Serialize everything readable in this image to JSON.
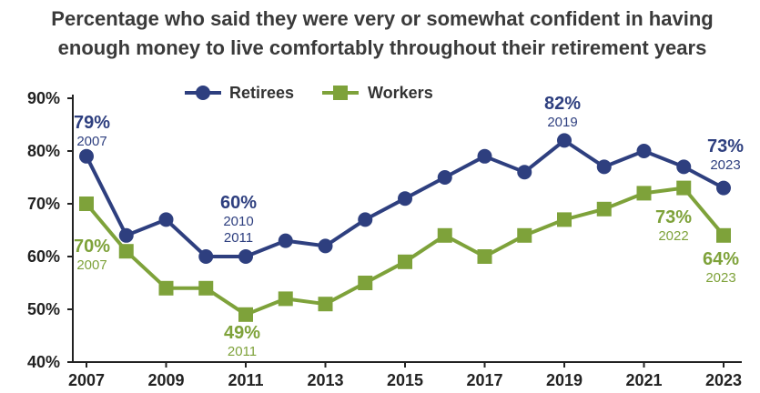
{
  "chart_data": {
    "type": "line",
    "title_line1": "Percentage who said they were very or somewhat confident in having",
    "title_line2": "enough money to live comfortably throughout their retirement years",
    "x": [
      2007,
      2008,
      2009,
      2010,
      2011,
      2012,
      2013,
      2014,
      2015,
      2016,
      2017,
      2018,
      2019,
      2020,
      2021,
      2022,
      2023
    ],
    "x_ticks": [
      "2007",
      "2009",
      "2011",
      "2013",
      "2015",
      "2017",
      "2019",
      "2021",
      "2023"
    ],
    "y_ticks": [
      "40%",
      "50%",
      "60%",
      "70%",
      "80%",
      "90%"
    ],
    "ylim": [
      40,
      90
    ],
    "series": [
      {
        "name": "Retirees",
        "color": "#2e3f7f",
        "values": [
          79,
          64,
          67,
          60,
          60,
          63,
          62,
          67,
          71,
          75,
          79,
          76,
          82,
          77,
          80,
          77,
          73
        ]
      },
      {
        "name": "Workers",
        "color": "#7ea23a",
        "values": [
          70,
          61,
          54,
          54,
          49,
          52,
          51,
          55,
          59,
          64,
          60,
          64,
          67,
          69,
          72,
          73,
          64
        ]
      }
    ],
    "annotations": [
      {
        "id": "r2007",
        "series": "Retirees",
        "value": "79%",
        "year": "2007"
      },
      {
        "id": "r2010",
        "series": "Retirees",
        "value": "60%",
        "year": "2010",
        "year2": "2011"
      },
      {
        "id": "r2019",
        "series": "Retirees",
        "value": "82%",
        "year": "2019"
      },
      {
        "id": "r2023",
        "series": "Retirees",
        "value": "73%",
        "year": "2023"
      },
      {
        "id": "w2007",
        "series": "Workers",
        "value": "70%",
        "year": "2007"
      },
      {
        "id": "w2011",
        "series": "Workers",
        "value": "49%",
        "year": "2011"
      },
      {
        "id": "w2022",
        "series": "Workers",
        "value": "73%",
        "year": "2022"
      },
      {
        "id": "w2023",
        "series": "Workers",
        "value": "64%",
        "year": "2023"
      }
    ],
    "grid": false,
    "legend": "top-center"
  }
}
